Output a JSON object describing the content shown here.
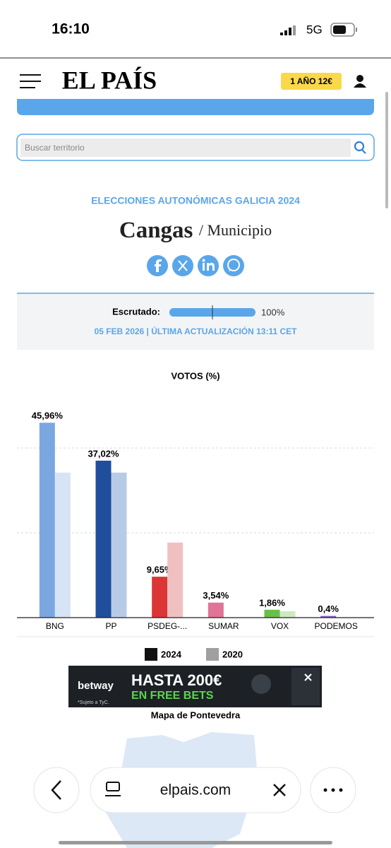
{
  "status_bar": {
    "time": "16:10",
    "network": "5G"
  },
  "header": {
    "logo": "EL PAÍS",
    "subscribe": "1 AÑO 12€"
  },
  "search": {
    "placeholder": "Buscar territorio"
  },
  "election": {
    "kicker": "ELECCIONES AUTONÓMICAS GALICIA 2024",
    "place": "Cangas",
    "level": "/ Municipio"
  },
  "scrutiny": {
    "label": "Escrutado:",
    "progress": {
      "value": 100,
      "label": "100%"
    },
    "updated": "05 FEB 2026 | ÚLTIMA ACTUALIZACIÓN 13:11 CET"
  },
  "chart_data": {
    "type": "bar",
    "title": "VOTOS (%)",
    "categories": [
      "BNG",
      "PP",
      "PSDEG-...",
      "SUMAR",
      "VOX",
      "PODEMOS"
    ],
    "ylim": [
      0,
      50
    ],
    "yticks": [
      0,
      20,
      40
    ],
    "grid": true,
    "series": [
      {
        "name": "2024",
        "color": "#111111",
        "bar_colors": [
          "#7ba7e0",
          "#1f4e9c",
          "#dc3535",
          "#e07396",
          "#6abf4b",
          "#8c5ac8"
        ],
        "values": [
          45.96,
          37.02,
          9.65,
          3.54,
          1.86,
          0.4
        ],
        "value_labels": [
          "45,96%",
          "37,02%",
          "9,65%",
          "3,54%",
          "1,86%",
          "0,4%"
        ]
      },
      {
        "name": "2020",
        "color": "#a0a0a0",
        "bar_colors": [
          "#d6e4f5",
          "#b8cbe6",
          "#f0c0c0",
          "#f3c9d6",
          "#cdeac0",
          "#ddd0ee"
        ],
        "values": [
          34.2,
          34.2,
          17.7,
          null,
          1.5,
          null
        ]
      }
    ]
  },
  "ad": {
    "brand": "betway",
    "headline": "HASTA 200€",
    "subline": "EN FREE BETS",
    "fine_print": "*Sujeto a TyC."
  },
  "map": {
    "title": "Mapa de Pontevedra"
  },
  "browser": {
    "url": "elpais.com"
  }
}
